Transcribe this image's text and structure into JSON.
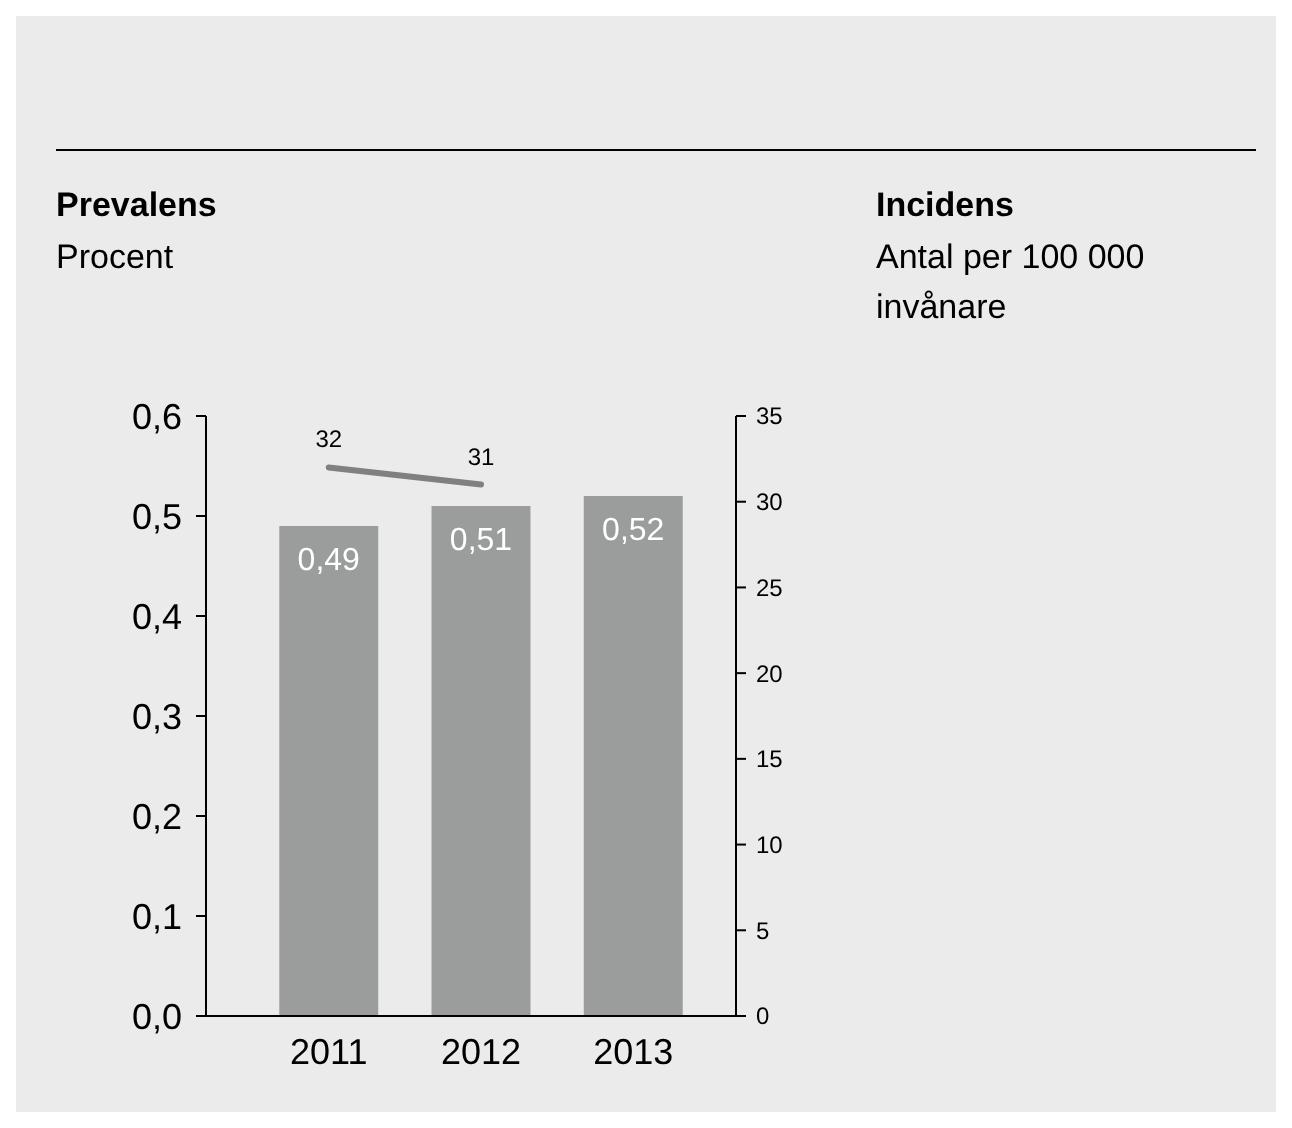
{
  "chart_data": {
    "type": "bar",
    "annotations": [
      "Prevalens",
      "Incidens"
    ],
    "ylabel": "Procent",
    "y2label": "Antal per 100 000 invånare",
    "categories": [
      "2011",
      "2012",
      "2013"
    ],
    "series": [
      {
        "color": "#9a9d9c",
        "values": [
          0.49,
          0.51,
          0.52
        ],
        "value_labels": [
          "0,49",
          "0,51",
          "0,52"
        ]
      },
      {
        "type": "line",
        "axis": "y2",
        "color": "#808080",
        "values": [
          32,
          31,
          null
        ]
      }
    ],
    "ylim": [
      0,
      0.6
    ],
    "yticks": [
      {
        "value": 0,
        "label": "0,0"
      },
      {
        "value": 0.1,
        "label": "0,1"
      },
      {
        "value": 0.2,
        "label": "0,2"
      },
      {
        "value": 0.3,
        "label": "0,3"
      },
      {
        "value": 0.4,
        "label": "0,4"
      },
      {
        "value": 0.5,
        "label": "0,5"
      },
      {
        "value": 0.6,
        "label": "0,6"
      }
    ],
    "y2lim": [
      0,
      35
    ],
    "y2ticks": [
      0,
      5,
      10,
      15,
      20,
      25,
      30,
      35
    ],
    "data_labels": true,
    "grid": false
  }
}
